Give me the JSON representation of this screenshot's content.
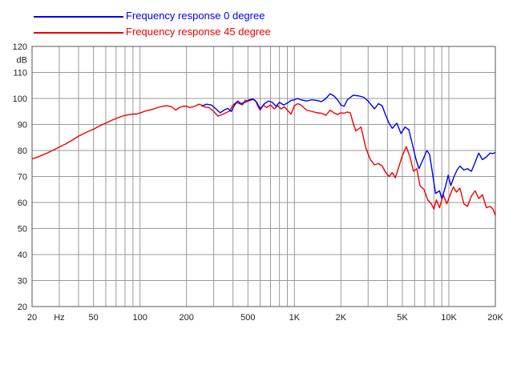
{
  "colors": {
    "series_0": "#0000ee",
    "series_45": "#ee0000",
    "grid": "#9a9a9a",
    "frame": "#555555"
  },
  "chart_data": {
    "type": "line",
    "x_scale": "log",
    "xlim": [
      20,
      20000
    ],
    "ylim": [
      20,
      120
    ],
    "grid": true,
    "ylabel": "dB",
    "xlabel": "Hz",
    "x_ticks": [
      20,
      50,
      100,
      200,
      500,
      1000,
      2000,
      5000,
      10000,
      20000
    ],
    "x_tick_labels": [
      "20",
      "50",
      "100",
      "200",
      "500",
      "1K",
      "2K",
      "5K",
      "10K",
      "20K"
    ],
    "y_ticks": [
      20,
      30,
      40,
      50,
      60,
      70,
      80,
      90,
      100,
      110,
      120
    ],
    "legend_placement": "top-left",
    "series": [
      {
        "name": "Frequency response 0 degree",
        "color": "#0000ee",
        "points": [
          [
            250,
            97
          ],
          [
            270,
            97.8
          ],
          [
            290,
            97.5
          ],
          [
            310,
            96
          ],
          [
            330,
            94.5
          ],
          [
            350,
            95.5
          ],
          [
            370,
            96.2
          ],
          [
            390,
            95
          ],
          [
            410,
            97.5
          ],
          [
            430,
            99
          ],
          [
            450,
            98
          ],
          [
            480,
            98.5
          ],
          [
            510,
            99.5
          ],
          [
            540,
            99.8
          ],
          [
            570,
            98.5
          ],
          [
            600,
            96
          ],
          [
            640,
            98
          ],
          [
            680,
            99
          ],
          [
            720,
            98.5
          ],
          [
            760,
            97
          ],
          [
            800,
            98.5
          ],
          [
            850,
            97.5
          ],
          [
            900,
            98.2
          ],
          [
            950,
            99.2
          ],
          [
            1000,
            99.5
          ],
          [
            1050,
            100
          ],
          [
            1100,
            99.5
          ],
          [
            1200,
            99
          ],
          [
            1300,
            99.5
          ],
          [
            1400,
            99.2
          ],
          [
            1500,
            98.8
          ],
          [
            1600,
            100
          ],
          [
            1700,
            101.8
          ],
          [
            1800,
            101
          ],
          [
            1900,
            99.5
          ],
          [
            2000,
            97.5
          ],
          [
            2100,
            97
          ],
          [
            2200,
            99.5
          ],
          [
            2400,
            101.2
          ],
          [
            2600,
            101
          ],
          [
            2800,
            100.5
          ],
          [
            3000,
            99
          ],
          [
            3300,
            96
          ],
          [
            3500,
            98
          ],
          [
            3700,
            97.2
          ],
          [
            3900,
            93.5
          ],
          [
            4100,
            90.5
          ],
          [
            4300,
            88.5
          ],
          [
            4600,
            90.5
          ],
          [
            4900,
            86.5
          ],
          [
            5200,
            89
          ],
          [
            5500,
            88
          ],
          [
            5800,
            82.5
          ],
          [
            6100,
            77
          ],
          [
            6400,
            73
          ],
          [
            6800,
            76.5
          ],
          [
            7200,
            80
          ],
          [
            7500,
            78.5
          ],
          [
            7800,
            72
          ],
          [
            8200,
            63.5
          ],
          [
            8700,
            64.5
          ],
          [
            9000,
            61.5
          ],
          [
            9500,
            66
          ],
          [
            9900,
            70.5
          ],
          [
            10300,
            66.5
          ],
          [
            10800,
            70
          ],
          [
            11300,
            72.5
          ],
          [
            11800,
            74
          ],
          [
            12500,
            72.5
          ],
          [
            13200,
            73
          ],
          [
            14000,
            72
          ],
          [
            14800,
            75.5
          ],
          [
            15600,
            79
          ],
          [
            16500,
            76.5
          ],
          [
            17500,
            77.5
          ],
          [
            18500,
            79
          ],
          [
            19200,
            78.8
          ],
          [
            20000,
            79.2
          ]
        ]
      },
      {
        "name": "Frequency response 45 degree",
        "color": "#ee0000",
        "points": [
          [
            20,
            76.8
          ],
          [
            22,
            77.6
          ],
          [
            25,
            79
          ],
          [
            28,
            80.4
          ],
          [
            30,
            81.3
          ],
          [
            33,
            82.5
          ],
          [
            36,
            83.8
          ],
          [
            40,
            85.5
          ],
          [
            45,
            87
          ],
          [
            50,
            88.2
          ],
          [
            55,
            89.5
          ],
          [
            60,
            90.5
          ],
          [
            65,
            91.5
          ],
          [
            70,
            92.3
          ],
          [
            75,
            93
          ],
          [
            80,
            93.5
          ],
          [
            85,
            93.8
          ],
          [
            90,
            94
          ],
          [
            95,
            94
          ],
          [
            100,
            94.4
          ],
          [
            110,
            95.3
          ],
          [
            120,
            95.8
          ],
          [
            130,
            96.5
          ],
          [
            140,
            97
          ],
          [
            150,
            97.2
          ],
          [
            160,
            96.8
          ],
          [
            170,
            95.5
          ],
          [
            180,
            96.5
          ],
          [
            190,
            97
          ],
          [
            200,
            97
          ],
          [
            210,
            96.5
          ],
          [
            220,
            96.8
          ],
          [
            230,
            97.2
          ],
          [
            240,
            97.8
          ],
          [
            250,
            97.5
          ],
          [
            260,
            96.8
          ],
          [
            280,
            96.5
          ],
          [
            300,
            95
          ],
          [
            320,
            93.2
          ],
          [
            340,
            93.8
          ],
          [
            360,
            94.5
          ],
          [
            380,
            95.2
          ],
          [
            400,
            97.5
          ],
          [
            420,
            98.5
          ],
          [
            440,
            98
          ],
          [
            460,
            97.5
          ],
          [
            480,
            99.3
          ],
          [
            500,
            99
          ],
          [
            520,
            99.3
          ],
          [
            540,
            99.6
          ],
          [
            560,
            99.2
          ],
          [
            580,
            97
          ],
          [
            600,
            95.5
          ],
          [
            630,
            97.5
          ],
          [
            660,
            96.5
          ],
          [
            700,
            97.5
          ],
          [
            740,
            96
          ],
          [
            780,
            97.2
          ],
          [
            820,
            96
          ],
          [
            860,
            96.8
          ],
          [
            900,
            95.5
          ],
          [
            950,
            94
          ],
          [
            1000,
            97.2
          ],
          [
            1050,
            98
          ],
          [
            1100,
            97.5
          ],
          [
            1200,
            95.5
          ],
          [
            1300,
            95
          ],
          [
            1400,
            94.5
          ],
          [
            1500,
            94.3
          ],
          [
            1600,
            93.5
          ],
          [
            1700,
            95.5
          ],
          [
            1800,
            94.5
          ],
          [
            1900,
            93.8
          ],
          [
            2000,
            94.5
          ],
          [
            2100,
            94.3
          ],
          [
            2200,
            94.8
          ],
          [
            2300,
            94.5
          ],
          [
            2400,
            90.5
          ],
          [
            2500,
            87.5
          ],
          [
            2700,
            89
          ],
          [
            2900,
            81
          ],
          [
            3100,
            76.5
          ],
          [
            3300,
            74.5
          ],
          [
            3500,
            75
          ],
          [
            3700,
            74
          ],
          [
            3900,
            71.5
          ],
          [
            4100,
            70
          ],
          [
            4300,
            71.5
          ],
          [
            4500,
            69.5
          ],
          [
            4700,
            73
          ],
          [
            5000,
            78
          ],
          [
            5300,
            81.5
          ],
          [
            5600,
            77.5
          ],
          [
            5900,
            72
          ],
          [
            6200,
            73
          ],
          [
            6500,
            66.5
          ],
          [
            6900,
            65
          ],
          [
            7300,
            61
          ],
          [
            7700,
            59.5
          ],
          [
            8000,
            57.5
          ],
          [
            8300,
            61
          ],
          [
            8700,
            58
          ],
          [
            9200,
            63
          ],
          [
            9700,
            59.5
          ],
          [
            10200,
            63
          ],
          [
            10700,
            66
          ],
          [
            11200,
            64
          ],
          [
            11800,
            65.5
          ],
          [
            12500,
            59.5
          ],
          [
            13200,
            58.5
          ],
          [
            14000,
            62.5
          ],
          [
            14800,
            64.5
          ],
          [
            15600,
            61.5
          ],
          [
            16500,
            63
          ],
          [
            17500,
            58
          ],
          [
            18500,
            58.5
          ],
          [
            19300,
            57.5
          ],
          [
            20000,
            55
          ]
        ]
      }
    ]
  }
}
